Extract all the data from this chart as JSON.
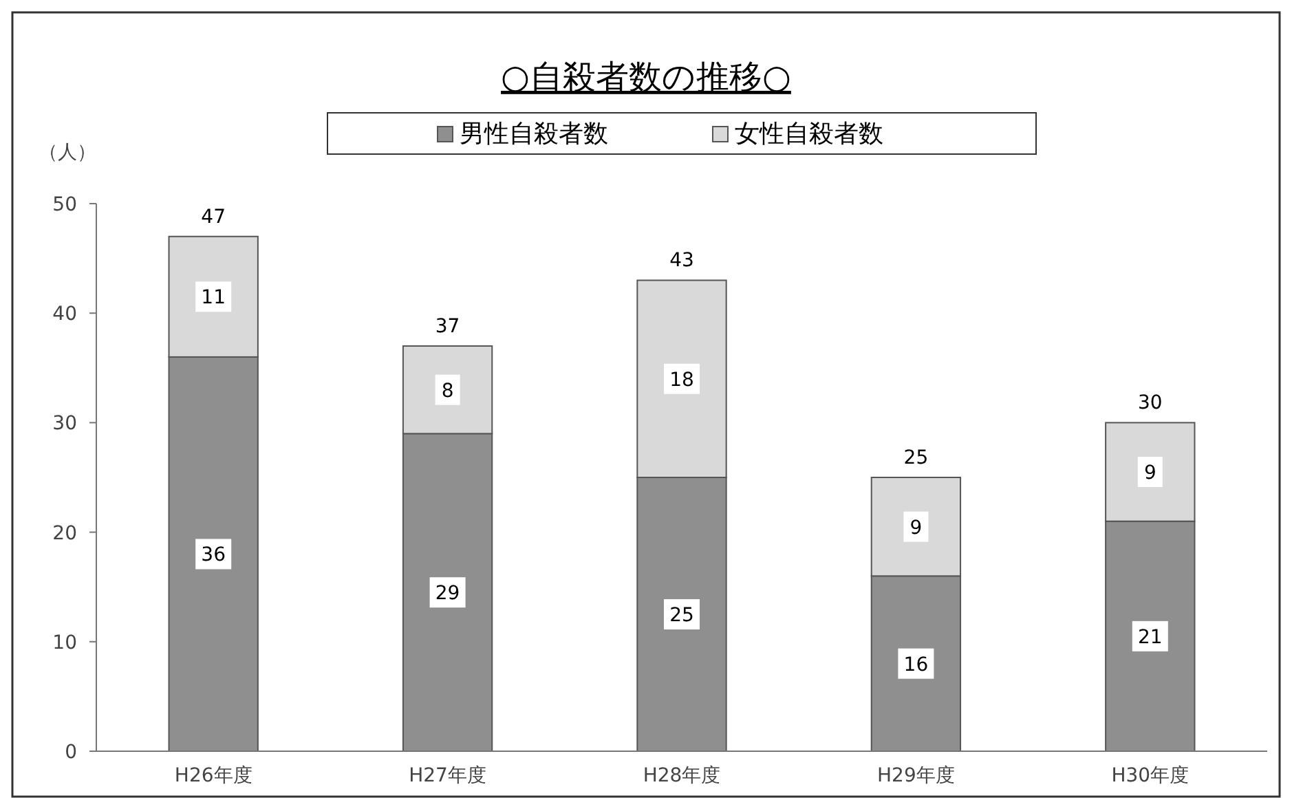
{
  "chart_data": {
    "type": "bar",
    "title": "○自殺者数の推移○",
    "ylabel": "（人）",
    "categories": [
      "H26年度",
      "H27年度",
      "H28年度",
      "H29年度",
      "H30年度"
    ],
    "series": [
      {
        "name": "男性自殺者数",
        "color": "#8f8f8f",
        "values": [
          36,
          29,
          25,
          16,
          21
        ]
      },
      {
        "name": "女性自殺者数",
        "color": "#d9d9d9",
        "values": [
          11,
          8,
          18,
          9,
          9
        ]
      }
    ],
    "stacked": true,
    "data_labels": true,
    "totals": [
      "47",
      "37",
      "43",
      "25",
      "30"
    ],
    "ylim": [
      0,
      50
    ],
    "yticks": [
      0,
      10,
      20,
      30,
      40,
      50
    ],
    "grid": false,
    "legend": "top"
  }
}
